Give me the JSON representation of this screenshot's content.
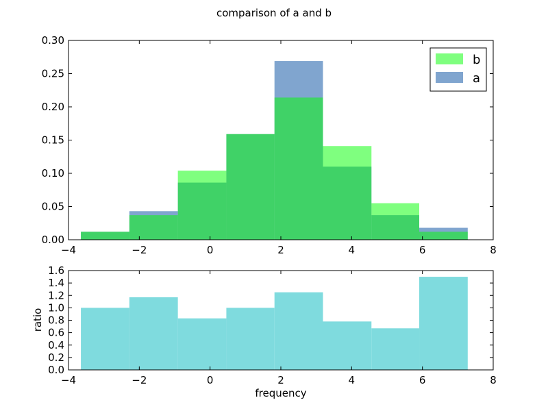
{
  "chart_data": {
    "title": "comparison of a and b",
    "x_edges": [
      -3.65,
      -2.28,
      -0.91,
      0.46,
      1.82,
      3.19,
      4.56,
      5.91,
      7.28
    ],
    "top": {
      "type": "bar",
      "ylim": [
        0,
        0.3
      ],
      "xlim": [
        -4,
        8
      ],
      "yticks": [
        "0.00",
        "0.05",
        "0.10",
        "0.15",
        "0.20",
        "0.25",
        "0.30"
      ],
      "xticks": [
        "−4",
        "−2",
        "0",
        "2",
        "4",
        "6",
        "8"
      ],
      "series": [
        {
          "name": "a",
          "color": "#4a7fba",
          "opacity": 0.7,
          "values": [
            0.012,
            0.043,
            0.086,
            0.159,
            0.269,
            0.11,
            0.037,
            0.018
          ]
        },
        {
          "name": "b",
          "color": "#00ff00",
          "opacity": 0.5,
          "values": [
            0.012,
            0.037,
            0.104,
            0.159,
            0.214,
            0.141,
            0.055,
            0.012
          ]
        }
      ],
      "legend": {
        "position": "top-right",
        "entries": [
          "b",
          "a"
        ]
      }
    },
    "bottom": {
      "type": "bar",
      "ylabel": "ratio",
      "xlabel": "frequency",
      "ylim": [
        0,
        1.6
      ],
      "xlim": [
        -4,
        8
      ],
      "yticks": [
        "0.0",
        "0.2",
        "0.4",
        "0.6",
        "0.8",
        "1.0",
        "1.2",
        "1.4",
        "1.6"
      ],
      "xticks": [
        "−4",
        "−2",
        "0",
        "2",
        "4",
        "6",
        "8"
      ],
      "color": "#7fdbde",
      "values": [
        1.0,
        1.17,
        0.83,
        1.0,
        1.25,
        0.78,
        0.67,
        1.5
      ]
    }
  }
}
